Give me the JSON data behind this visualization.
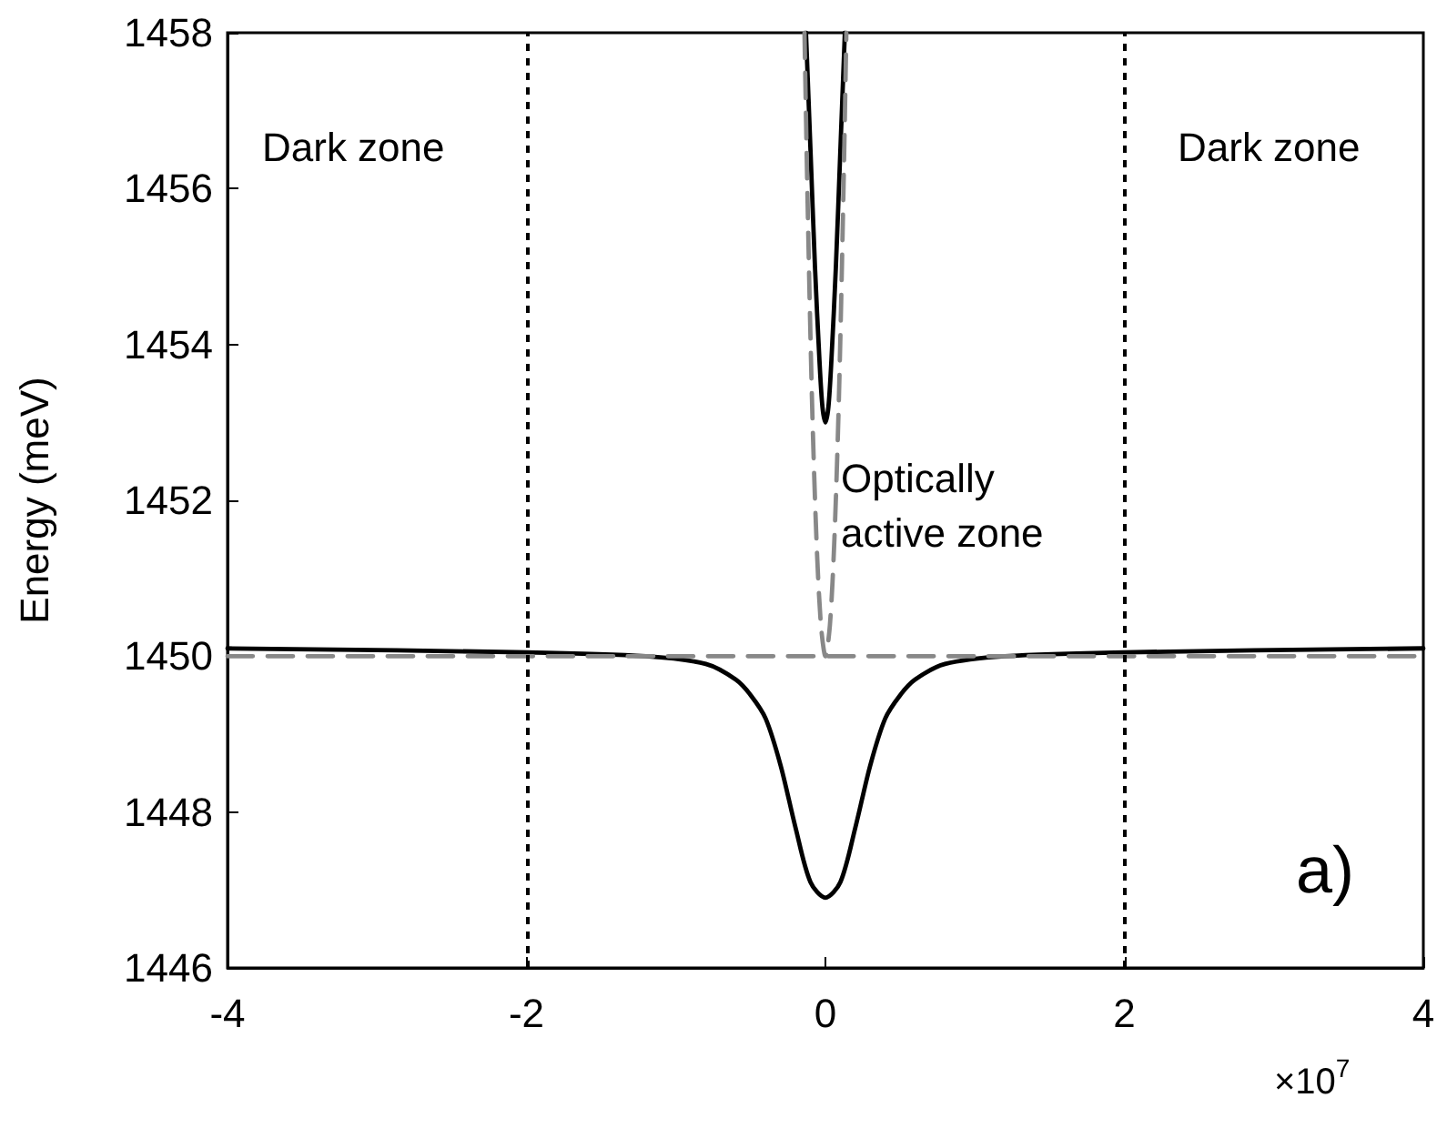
{
  "chart_data": {
    "type": "line",
    "ylabel": "Energy (meV)",
    "xlim": [
      -4,
      4
    ],
    "xticks": [
      -4,
      -2,
      0,
      2,
      4
    ],
    "ylim": [
      1446,
      1458
    ],
    "yticks": [
      1446,
      1448,
      1450,
      1452,
      1454,
      1456,
      1458
    ],
    "grid": false,
    "legend": false,
    "marker": "none",
    "series": [
      {
        "color": "#000000",
        "line_style": "solid",
        "x": [
          -4,
          -2,
          -1.2,
          -0.8,
          -0.6,
          -0.5,
          -0.4,
          -0.3,
          -0.2,
          -0.1,
          0,
          0.1,
          0.2,
          0.3,
          0.4,
          0.5,
          0.6,
          0.8,
          1.2,
          2,
          4
        ],
        "values": [
          1450.1,
          1450.05,
          1450.0,
          1449.9,
          1449.7,
          1449.5,
          1449.2,
          1448.6,
          1447.8,
          1447.1,
          1446.9,
          1447.1,
          1447.8,
          1448.6,
          1449.2,
          1449.5,
          1449.7,
          1449.9,
          1450.0,
          1450.05,
          1450.1
        ]
      },
      {
        "color": "#000000",
        "line_style": "solid",
        "x": [
          -0.13,
          -0.1,
          -0.07,
          -0.04,
          -0.02,
          0,
          0.02,
          0.04,
          0.07,
          0.1,
          0.13
        ],
        "values": [
          1458,
          1456.5,
          1455,
          1453.8,
          1453.2,
          1453.0,
          1453.2,
          1453.8,
          1455,
          1456.5,
          1458
        ]
      },
      {
        "color": "#888888",
        "line_style": "dashed",
        "x": [
          -0.14,
          -0.12,
          -0.09,
          -0.06,
          -0.03,
          0,
          0.03,
          0.06,
          0.09,
          0.12,
          0.14
        ],
        "values": [
          1458,
          1455.9,
          1453.3,
          1451.5,
          1450.4,
          1450,
          1450.4,
          1451.5,
          1453.3,
          1455.9,
          1458
        ]
      },
      {
        "color": "#888888",
        "line_style": "dashed",
        "x": [
          -4,
          4
        ],
        "values": [
          1450,
          1450
        ]
      }
    ],
    "ref_lines": [
      {
        "axis": "x",
        "value": -2,
        "color": "#000000",
        "line_style": "dotted"
      },
      {
        "axis": "x",
        "value": 2,
        "color": "#000000",
        "line_style": "dotted"
      }
    ],
    "annotations": [
      "Dark zone",
      "Dark zone",
      "Optically\nactive zone",
      "a)",
      "×10$^{7}$"
    ]
  }
}
